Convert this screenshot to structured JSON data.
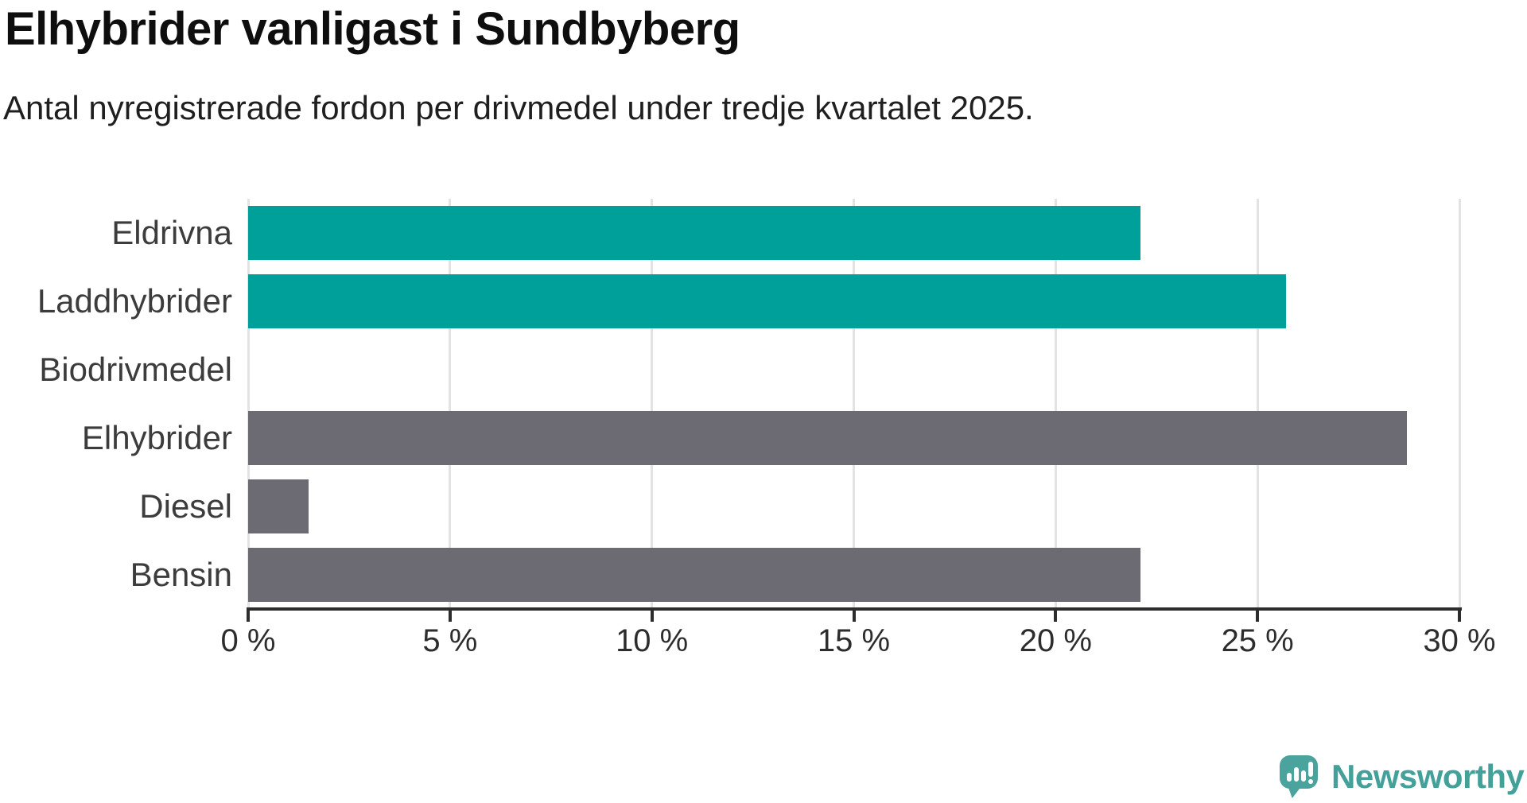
{
  "chart_data": {
    "type": "bar",
    "orientation": "horizontal",
    "title": "Elhybrider vanligast i Sundbyberg",
    "subtitle": "Antal nyregistrerade fordon per drivmedel under tredje kvartalet 2025.",
    "categories": [
      "Eldrivna",
      "Laddhybrider",
      "Biodrivmedel",
      "Elhybrider",
      "Diesel",
      "Bensin"
    ],
    "values": [
      22.1,
      25.7,
      0,
      28.7,
      1.5,
      22.1
    ],
    "unit": "%",
    "bar_colors": [
      "#00a09a",
      "#00a09a",
      "#00a09a",
      "#6c6b73",
      "#6c6b73",
      "#6c6b73"
    ],
    "xlabel": "",
    "ylabel": "",
    "xlim": [
      0,
      30
    ],
    "xticks": [
      0,
      5,
      10,
      15,
      20,
      25,
      30
    ],
    "xtick_labels": [
      "0 %",
      "5 %",
      "10 %",
      "15 %",
      "20 %",
      "25 %",
      "30 %"
    ],
    "grid": true,
    "legend": false,
    "accent_color": "#00a09a",
    "neutral_color": "#6c6b73",
    "gridline_color": "#e3e3e3",
    "axis_color": "#2e2d2e"
  },
  "logo": {
    "text": "Newsworthy",
    "icon": "newsworthy-bubble-chart-icon",
    "color": "#43a19a"
  }
}
